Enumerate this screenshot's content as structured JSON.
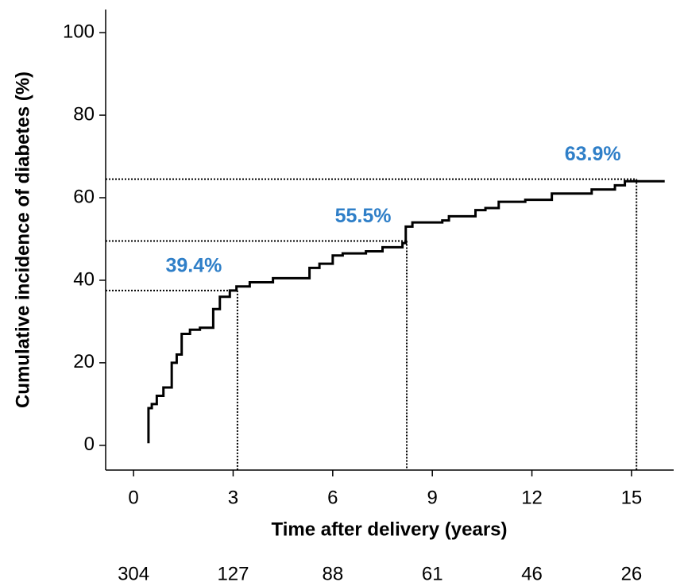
{
  "chart_data": {
    "type": "step-line",
    "xlabel": "Time after delivery (years)",
    "ylabel": "Cumulative incidence of diabetes (%)",
    "x": [
      0.45,
      0.45,
      0.55,
      0.55,
      0.7,
      0.7,
      0.9,
      0.9,
      1.15,
      1.15,
      1.3,
      1.3,
      1.45,
      1.45,
      1.7,
      1.7,
      2.0,
      2.0,
      2.4,
      2.4,
      2.6,
      2.6,
      2.9,
      2.9,
      3.1,
      3.1,
      3.5,
      3.5,
      4.2,
      4.2,
      5.3,
      5.3,
      5.6,
      5.6,
      6.0,
      6.0,
      6.3,
      6.3,
      7.0,
      7.0,
      7.5,
      7.5,
      8.1,
      8.1,
      8.2,
      8.2,
      8.4,
      8.4,
      9.3,
      9.3,
      9.5,
      9.5,
      10.3,
      10.3,
      10.6,
      10.6,
      11.0,
      11.0,
      11.8,
      11.8,
      12.6,
      12.6,
      13.8,
      13.8,
      14.5,
      14.5,
      14.8,
      14.8,
      16.0
    ],
    "values": [
      0.5,
      9,
      9,
      10,
      10,
      12,
      12,
      14,
      14,
      20,
      20,
      22,
      22,
      27,
      27,
      28,
      28,
      28.5,
      28.5,
      33,
      33,
      36,
      36,
      37.5,
      37.5,
      38.5,
      38.5,
      39.5,
      39.5,
      40.5,
      40.5,
      43,
      43,
      44,
      44,
      46,
      46,
      46.5,
      46.5,
      47,
      47,
      48,
      48,
      49,
      49,
      53,
      53,
      54,
      54,
      54.5,
      54.5,
      55.5,
      55.5,
      57,
      57,
      57.5,
      57.5,
      59,
      59,
      59.5,
      59.5,
      61,
      61,
      62,
      62,
      63,
      63,
      64,
      64
    ],
    "color": "#000000",
    "xlim": [
      -0.84,
      16.27
    ],
    "xticks": [
      0,
      3,
      6,
      9,
      12,
      15
    ],
    "ylim": [
      -6,
      105.6
    ],
    "yticks": [
      0,
      20,
      40,
      60,
      80,
      100
    ],
    "reference_lines": [
      {
        "x": 3.13,
        "y": 37.5
      },
      {
        "x": 8.23,
        "y": 49.5
      },
      {
        "x": 15.15,
        "y": 64.5
      }
    ],
    "annotations": [
      "39.4%",
      "55.5%",
      "63.9%"
    ],
    "annotation_color": "#2f7fc8",
    "at_risk": [
      304,
      127,
      88,
      61,
      46,
      26
    ]
  }
}
